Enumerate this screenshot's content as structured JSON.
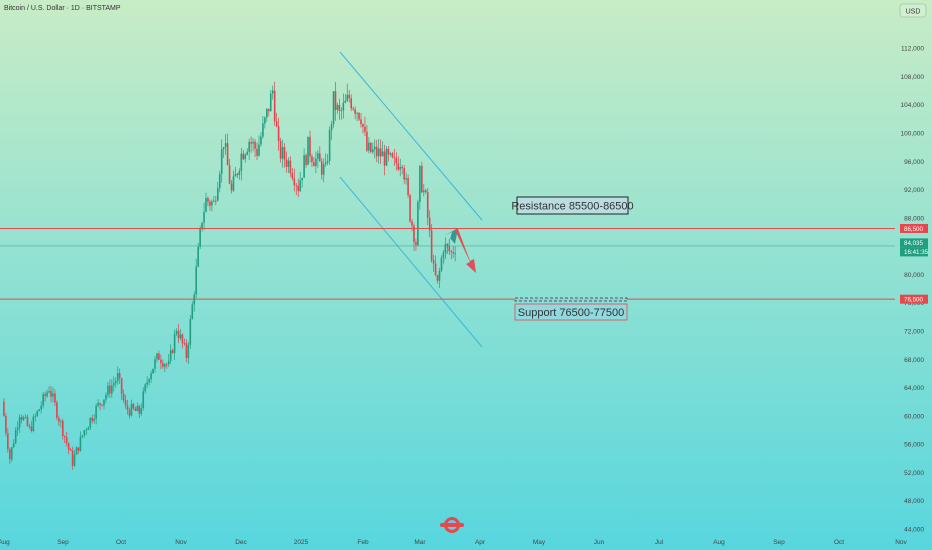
{
  "header": {
    "title": "Bitcoin / U.S. Dollar · 1D · BITSTAMP",
    "currency": "USD"
  },
  "colors": {
    "bg_top": "#c8ecc6",
    "bg_bottom": "#57d6de",
    "up": "#1f9e80",
    "down": "#e0434e",
    "level_line": "#e5484d",
    "channel": "#3cb8d8",
    "forecast_up": "#2e8f8a",
    "forecast_down": "#e5484d",
    "box_border": "#222222",
    "label_text": "#333333"
  },
  "chart_data": {
    "type": "candlestick",
    "y_axis": {
      "min": 44000,
      "max": 114000,
      "ticks": [
        "112,000",
        "108,000",
        "104,000",
        "100,000",
        "96,000",
        "92,000",
        "88,000",
        "80,000",
        "76,000",
        "72,000",
        "68,000",
        "64,000",
        "60,000",
        "56,000",
        "52,000",
        "48,000",
        "44,000"
      ]
    },
    "x_axis": {
      "labels": [
        "Aug",
        "Sep",
        "Oct",
        "Nov",
        "Dec",
        "2025",
        "Feb",
        "Mar",
        "Apr",
        "May",
        "Jun",
        "Jul",
        "Aug",
        "Sep",
        "Oct",
        "Nov"
      ]
    },
    "price_tags": [
      {
        "text": "86,500",
        "kind": "level"
      },
      {
        "text": "84,035",
        "kind": "current"
      },
      {
        "text": "16:41:35",
        "kind": "countdown"
      },
      {
        "text": "76,500",
        "kind": "level"
      }
    ],
    "levels": [
      {
        "label": "Resistance 85500-86500",
        "price": 86500
      },
      {
        "label": "Support 76500-77500",
        "price": 76500
      }
    ],
    "current_price": 84035,
    "series": [
      {
        "date": "2024-08-01",
        "close": 62000
      },
      {
        "date": "2024-08-05",
        "close": 54000
      },
      {
        "date": "2024-08-10",
        "close": 60500
      },
      {
        "date": "2024-08-15",
        "close": 58000
      },
      {
        "date": "2024-08-20",
        "close": 61000
      },
      {
        "date": "2024-08-25",
        "close": 64000
      },
      {
        "date": "2024-09-01",
        "close": 58000
      },
      {
        "date": "2024-09-06",
        "close": 53500
      },
      {
        "date": "2024-09-12",
        "close": 58000
      },
      {
        "date": "2024-09-18",
        "close": 61000
      },
      {
        "date": "2024-09-24",
        "close": 63500
      },
      {
        "date": "2024-09-29",
        "close": 65500
      },
      {
        "date": "2024-10-03",
        "close": 61000
      },
      {
        "date": "2024-10-10",
        "close": 60500
      },
      {
        "date": "2024-10-15",
        "close": 66000
      },
      {
        "date": "2024-10-20",
        "close": 68500
      },
      {
        "date": "2024-10-25",
        "close": 67000
      },
      {
        "date": "2024-10-29",
        "close": 72500
      },
      {
        "date": "2024-11-03",
        "close": 68500
      },
      {
        "date": "2024-11-06",
        "close": 75500
      },
      {
        "date": "2024-11-11",
        "close": 88000
      },
      {
        "date": "2024-11-13",
        "close": 90500
      },
      {
        "date": "2024-11-17",
        "close": 90000
      },
      {
        "date": "2024-11-22",
        "close": 99000
      },
      {
        "date": "2024-11-26",
        "close": 91500
      },
      {
        "date": "2024-12-01",
        "close": 97000
      },
      {
        "date": "2024-12-05",
        "close": 99000
      },
      {
        "date": "2024-12-09",
        "close": 97500
      },
      {
        "date": "2024-12-13",
        "close": 101500
      },
      {
        "date": "2024-12-17",
        "close": 106000
      },
      {
        "date": "2024-12-20",
        "close": 97500
      },
      {
        "date": "2024-12-26",
        "close": 95500
      },
      {
        "date": "2024-12-30",
        "close": 92500
      },
      {
        "date": "2025-01-04",
        "close": 98000
      },
      {
        "date": "2025-01-07",
        "close": 96500
      },
      {
        "date": "2025-01-13",
        "close": 94500
      },
      {
        "date": "2025-01-17",
        "close": 104500
      },
      {
        "date": "2025-01-20",
        "close": 102500
      },
      {
        "date": "2025-01-25",
        "close": 105000
      },
      {
        "date": "2025-01-31",
        "close": 102500
      },
      {
        "date": "2025-02-03",
        "close": 97500
      },
      {
        "date": "2025-02-10",
        "close": 97000
      },
      {
        "date": "2025-02-17",
        "close": 95500
      },
      {
        "date": "2025-02-21",
        "close": 96500
      },
      {
        "date": "2025-02-25",
        "close": 88500
      },
      {
        "date": "2025-02-28",
        "close": 84500
      },
      {
        "date": "2025-03-02",
        "close": 94000
      },
      {
        "date": "2025-03-05",
        "close": 90500
      },
      {
        "date": "2025-03-09",
        "close": 80500
      },
      {
        "date": "2025-03-11",
        "close": 78500
      },
      {
        "date": "2025-03-14",
        "close": 84000
      },
      {
        "date": "2025-03-18",
        "close": 83000
      },
      {
        "date": "2025-03-20",
        "close": 84035
      }
    ]
  }
}
